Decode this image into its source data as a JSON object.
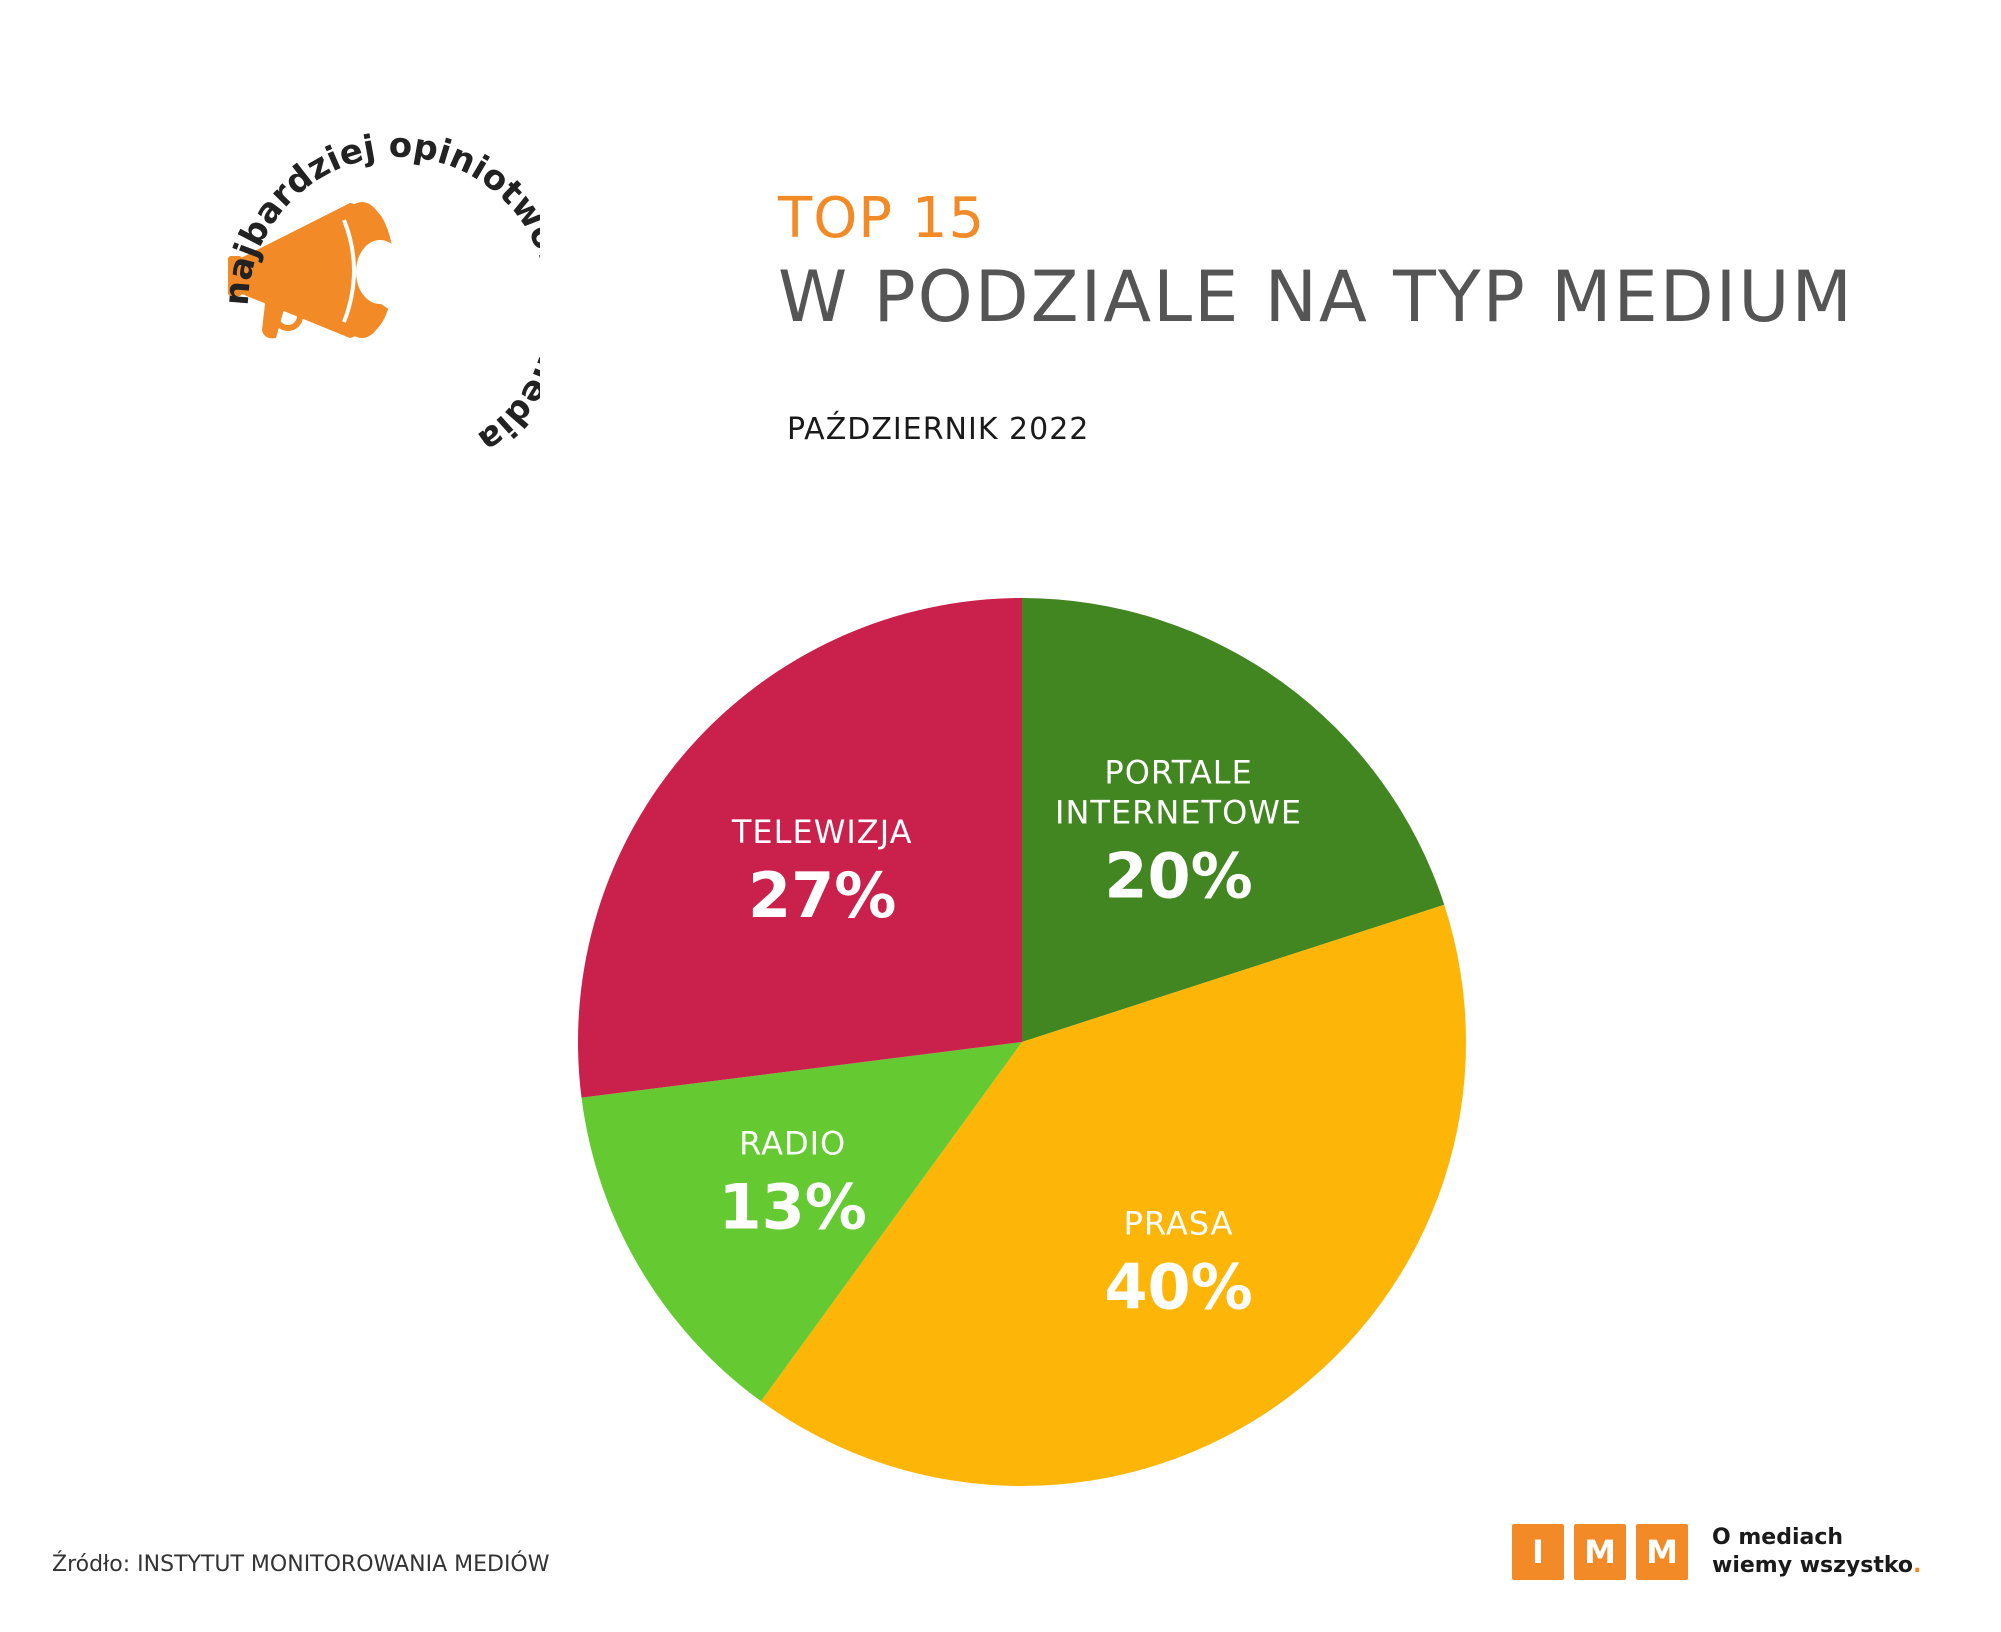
{
  "logo": {
    "circle_text": "najbardziej opiniotwórcze media",
    "icon": "megaphone-icon",
    "color": "#f28a27"
  },
  "header": {
    "top": "TOP 15",
    "title": "W PODZIALE NA TYP MEDIUM",
    "period": "PAŹDZIERNIK 2022"
  },
  "chart_data": {
    "type": "pie",
    "title": "W PODZIALE NA TYP MEDIUM",
    "unit": "%",
    "slices": [
      {
        "label_lines": [
          "PORTALE",
          "INTERNETOWE"
        ],
        "value": 20,
        "display": "20%",
        "color": "#428622"
      },
      {
        "label_lines": [
          "PRASA"
        ],
        "value": 40,
        "display": "40%",
        "color": "#fdb607"
      },
      {
        "label_lines": [
          "RADIO"
        ],
        "value": 13,
        "display": "13%",
        "color": "#65c932"
      },
      {
        "label_lines": [
          "TELEWIZJA"
        ],
        "value": 27,
        "display": "27%",
        "color": "#c9214b"
      }
    ]
  },
  "footer": {
    "source": "Źródło: INSTYTUT MONITOROWANIA MEDIÓW",
    "brand_letters": [
      "I",
      "M",
      "M"
    ],
    "slogan_line1": "O mediach",
    "slogan_line2": "wiemy wszystko",
    "slogan_dot": "."
  }
}
